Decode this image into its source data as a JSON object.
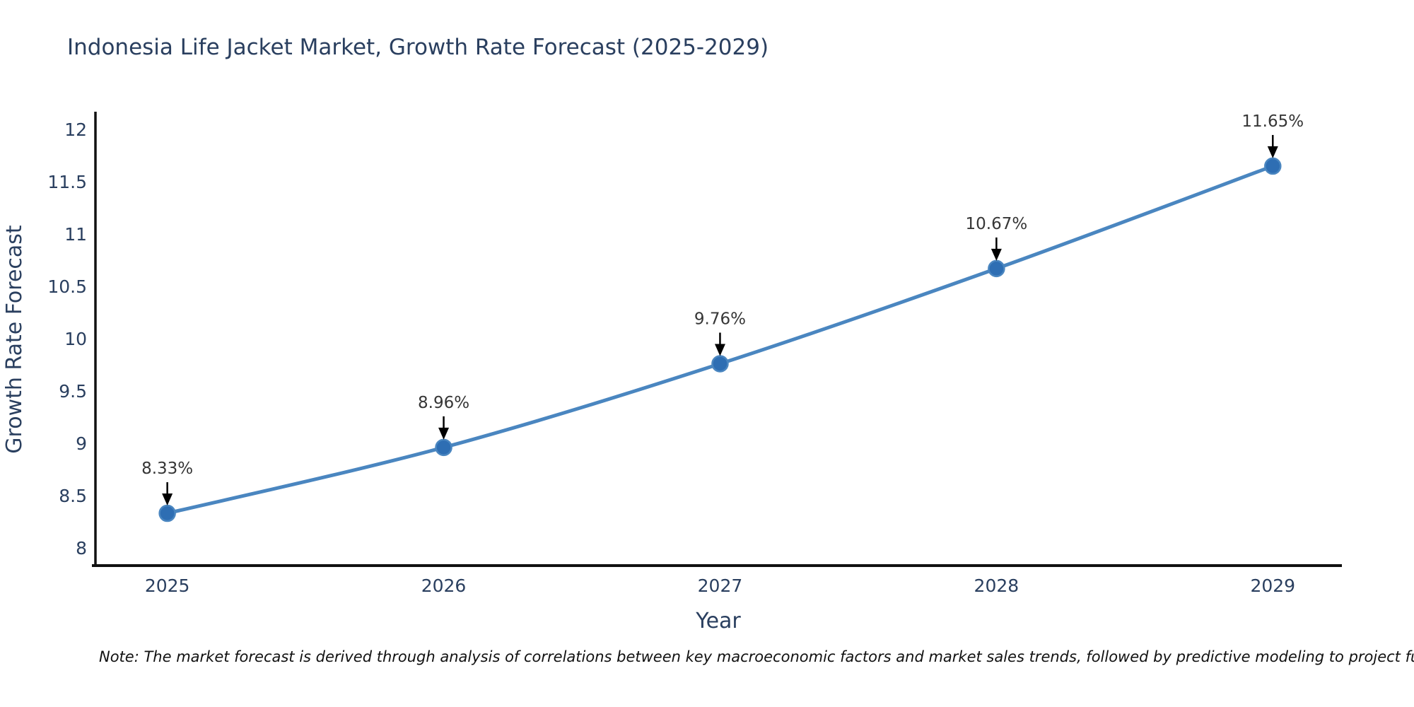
{
  "chart_data": {
    "type": "line",
    "title": "Indonesia Life Jacket Market, Growth Rate Forecast (2025-2029)",
    "xlabel": "Year",
    "ylabel": "Growth Rate Forecast",
    "x": [
      2025,
      2026,
      2027,
      2028,
      2029
    ],
    "values": [
      8.33,
      8.96,
      9.76,
      10.67,
      11.65
    ],
    "point_labels": [
      "8.33%",
      "8.96%",
      "9.76%",
      "10.67%",
      "11.65%"
    ],
    "yticks": [
      8,
      8.5,
      9,
      9.5,
      10,
      10.5,
      11,
      11.5,
      12
    ],
    "ylim": [
      7.83,
      12.17
    ],
    "xlim": [
      2024.74,
      2029.25
    ],
    "grid": false,
    "legend": false,
    "annotations_have_arrows": true,
    "colors": {
      "line": "#4a86c0",
      "marker_fill": "#2e6eb3",
      "marker_edge": "#4a86c0",
      "arrow": "#000000",
      "axis_line": "#111111",
      "chart_text": "#2a3f5f",
      "annotation_text": "#363636",
      "note_text": "#111111"
    },
    "note": "Note: The market forecast is derived through analysis of correlations between key macroeconomic factors and market sales trends, followed by predictive modeling to project future sal"
  }
}
